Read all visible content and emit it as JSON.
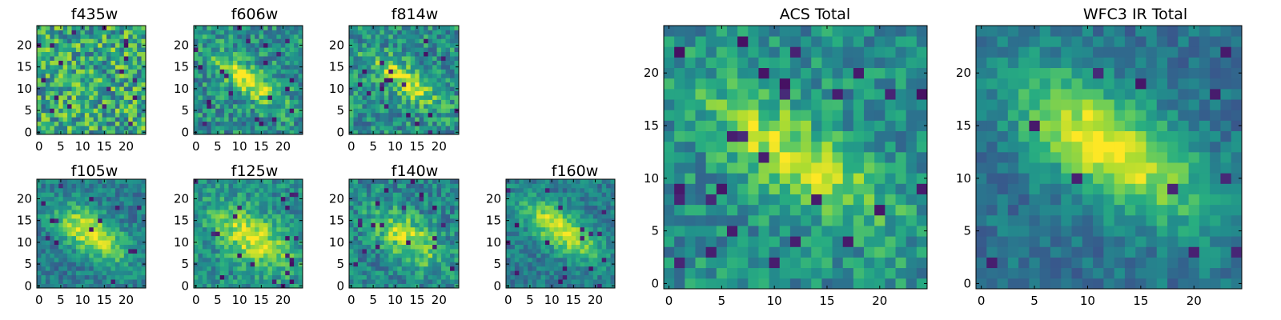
{
  "colormap": "viridis",
  "colors": {
    "low": "#440154",
    "mid": "#21918c",
    "high": "#fde725",
    "frame": "#000000"
  },
  "chart_data": [
    {
      "type": "heatmap",
      "title": "f435w",
      "xticks": [
        "0",
        "5",
        "10",
        "15",
        "20"
      ],
      "yticks": [
        "0",
        "5",
        "10",
        "15",
        "20"
      ],
      "xlim": [
        -0.5,
        24.5
      ],
      "ylim": [
        -0.5,
        24.5
      ],
      "grid": false,
      "shape": [
        25,
        25
      ],
      "structure": "noise",
      "center": [
        12,
        12
      ],
      "angle_deg": -35,
      "sigma_major": 6,
      "sigma_minor": 3,
      "peak": 0.0,
      "background": 0.6,
      "noise": 0.3
    },
    {
      "type": "heatmap",
      "title": "f606w",
      "xticks": [
        "0",
        "5",
        "10",
        "15",
        "20"
      ],
      "yticks": [
        "0",
        "5",
        "10",
        "15",
        "20"
      ],
      "xlim": [
        -0.5,
        24.5
      ],
      "ylim": [
        -0.5,
        24.5
      ],
      "grid": false,
      "shape": [
        25,
        25
      ],
      "structure": "elongated-source",
      "center": [
        12,
        12
      ],
      "angle_deg": -35,
      "sigma_major": 6,
      "sigma_minor": 2.2,
      "peak": 0.45,
      "background": 0.5,
      "noise": 0.22
    },
    {
      "type": "heatmap",
      "title": "f814w",
      "xticks": [
        "0",
        "5",
        "10",
        "15",
        "20"
      ],
      "yticks": [
        "0",
        "5",
        "10",
        "15",
        "20"
      ],
      "xlim": [
        -0.5,
        24.5
      ],
      "ylim": [
        -0.5,
        24.5
      ],
      "grid": false,
      "shape": [
        25,
        25
      ],
      "structure": "elongated-source",
      "center": [
        12,
        12
      ],
      "angle_deg": -35,
      "sigma_major": 6,
      "sigma_minor": 2.2,
      "peak": 0.45,
      "background": 0.5,
      "noise": 0.22
    },
    {
      "type": "heatmap",
      "title": "ACS Total",
      "xticks": [
        "0",
        "5",
        "10",
        "15",
        "20"
      ],
      "yticks": [
        "0",
        "5",
        "10",
        "15",
        "20"
      ],
      "xlim": [
        -0.5,
        24.5
      ],
      "ylim": [
        -0.5,
        24.5
      ],
      "grid": false,
      "shape": [
        25,
        25
      ],
      "structure": "elongated-source",
      "center": [
        12,
        12
      ],
      "angle_deg": -35,
      "sigma_major": 6.5,
      "sigma_minor": 2.4,
      "peak": 0.45,
      "background": 0.5,
      "noise": 0.18
    },
    {
      "type": "heatmap",
      "title": "WFC3 IR Total",
      "xticks": [
        "0",
        "5",
        "10",
        "15",
        "20"
      ],
      "yticks": [
        "0",
        "5",
        "10",
        "15",
        "20"
      ],
      "xlim": [
        -0.5,
        24.5
      ],
      "ylim": [
        -0.5,
        24.5
      ],
      "grid": false,
      "shape": [
        25,
        25
      ],
      "structure": "elongated-source",
      "center": [
        12,
        13
      ],
      "angle_deg": -35,
      "sigma_major": 7,
      "sigma_minor": 3.2,
      "peak": 0.62,
      "background": 0.38,
      "noise": 0.12
    },
    {
      "type": "heatmap",
      "title": "f105w",
      "xticks": [
        "0",
        "5",
        "10",
        "15",
        "20"
      ],
      "yticks": [
        "0",
        "5",
        "10",
        "15",
        "20"
      ],
      "xlim": [
        -0.5,
        24.5
      ],
      "ylim": [
        -0.5,
        24.5
      ],
      "grid": false,
      "shape": [
        25,
        25
      ],
      "structure": "elongated-source",
      "center": [
        12,
        12
      ],
      "angle_deg": -35,
      "sigma_major": 6.5,
      "sigma_minor": 3,
      "peak": 0.55,
      "background": 0.42,
      "noise": 0.15
    },
    {
      "type": "heatmap",
      "title": "f125w",
      "xticks": [
        "0",
        "5",
        "10",
        "15",
        "20"
      ],
      "yticks": [
        "0",
        "5",
        "10",
        "15",
        "20"
      ],
      "xlim": [
        -0.5,
        24.5
      ],
      "ylim": [
        -0.5,
        24.5
      ],
      "grid": false,
      "shape": [
        25,
        25
      ],
      "structure": "elongated-source",
      "center": [
        13,
        11
      ],
      "angle_deg": -35,
      "sigma_major": 7,
      "sigma_minor": 3.5,
      "peak": 0.45,
      "background": 0.5,
      "noise": 0.17
    },
    {
      "type": "heatmap",
      "title": "f140w",
      "xticks": [
        "0",
        "5",
        "10",
        "15",
        "20"
      ],
      "yticks": [
        "0",
        "5",
        "10",
        "15",
        "20"
      ],
      "xlim": [
        -0.5,
        24.5
      ],
      "ylim": [
        -0.5,
        24.5
      ],
      "grid": false,
      "shape": [
        25,
        25
      ],
      "structure": "elongated-source",
      "center": [
        13,
        11
      ],
      "angle_deg": -35,
      "sigma_major": 6.5,
      "sigma_minor": 3.2,
      "peak": 0.45,
      "background": 0.45,
      "noise": 0.19
    },
    {
      "type": "heatmap",
      "title": "f160w",
      "xticks": [
        "0",
        "5",
        "10",
        "15",
        "20"
      ],
      "yticks": [
        "0",
        "5",
        "10",
        "15",
        "20"
      ],
      "xlim": [
        -0.5,
        24.5
      ],
      "ylim": [
        -0.5,
        24.5
      ],
      "grid": false,
      "shape": [
        25,
        25
      ],
      "structure": "elongated-source",
      "center": [
        12,
        13
      ],
      "angle_deg": -35,
      "sigma_major": 7,
      "sigma_minor": 2.8,
      "peak": 0.55,
      "background": 0.42,
      "noise": 0.14
    }
  ]
}
